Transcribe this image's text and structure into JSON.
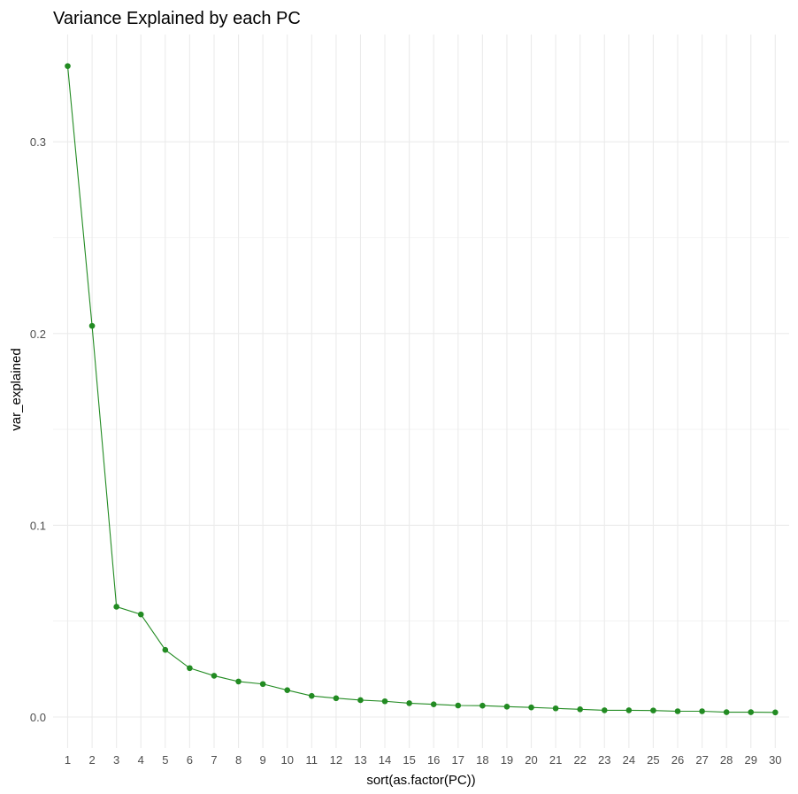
{
  "chart_data": {
    "type": "line",
    "title": "Variance Explained by each PC",
    "xlabel": "sort(as.factor(PC))",
    "ylabel": "var_explained",
    "categories": [
      "1",
      "2",
      "3",
      "4",
      "5",
      "6",
      "7",
      "8",
      "9",
      "10",
      "11",
      "12",
      "13",
      "14",
      "15",
      "16",
      "17",
      "18",
      "19",
      "20",
      "21",
      "22",
      "23",
      "24",
      "25",
      "26",
      "27",
      "28",
      "29",
      "30"
    ],
    "series": [
      {
        "values": [
          0.3395,
          0.204,
          0.0575,
          0.0535,
          0.035,
          0.0255,
          0.0215,
          0.0185,
          0.0172,
          0.014,
          0.011,
          0.0098,
          0.0088,
          0.0082,
          0.0072,
          0.0066,
          0.006,
          0.0059,
          0.0054,
          0.005,
          0.0045,
          0.004,
          0.0035,
          0.0035,
          0.0034,
          0.003,
          0.003,
          0.0025,
          0.0025,
          0.0024
        ],
        "color": "#228B22"
      }
    ],
    "yticks": [
      0.0,
      0.1,
      0.2,
      0.3
    ],
    "ytick_labels": [
      "0.0",
      "0.1",
      "0.2",
      "0.3"
    ],
    "ylim": [
      -0.015,
      0.355
    ],
    "grid": true,
    "grid_color": "#ebebeb",
    "tick_label_color": "#4d4d4d"
  }
}
